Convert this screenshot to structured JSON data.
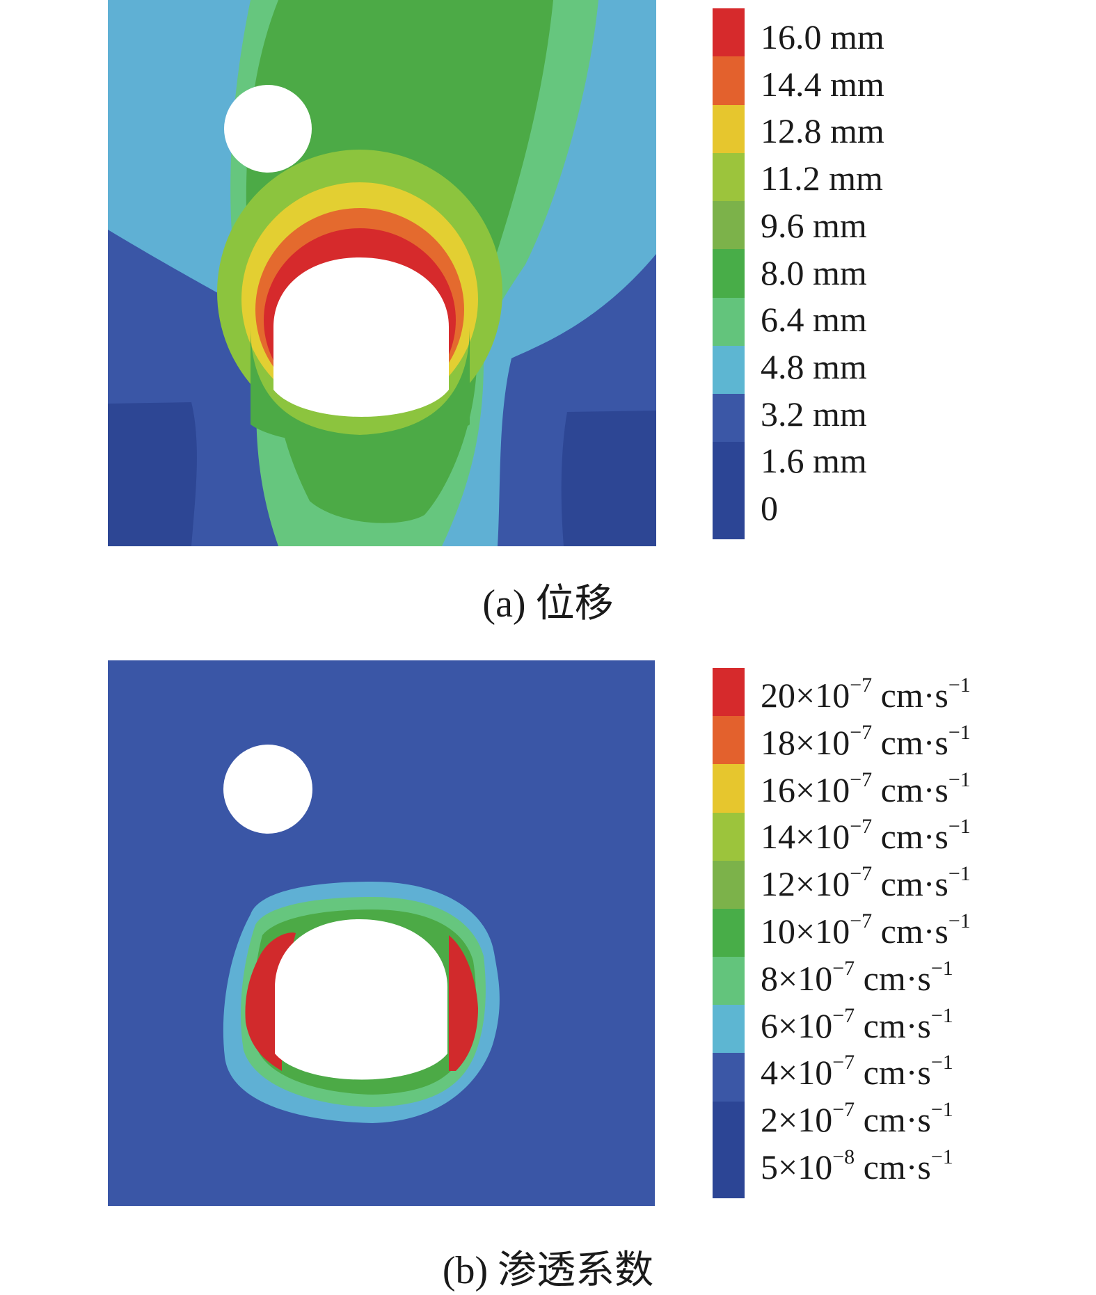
{
  "panel_a": {
    "caption": "(a) 位移",
    "colors": {
      "background_outer": "#3a56a6",
      "background_deep": "#2d4694",
      "cyan": "#5fb0d4",
      "light_green": "#66c67e",
      "green": "#4caa46",
      "yellow_green": "#8cc43e",
      "yellow": "#e3cf32",
      "orange": "#e46a2e",
      "red": "#d62a2c"
    },
    "legend": [
      {
        "label": "16.0 mm",
        "color": "#d62a2c"
      },
      {
        "label": "14.4 mm",
        "color": "#e3612d"
      },
      {
        "label": "12.8 mm",
        "color": "#e6c62e"
      },
      {
        "label": "11.2 mm",
        "color": "#9cc43c"
      },
      {
        "label": "9.6 mm",
        "color": "#7cb24a"
      },
      {
        "label": "8.0 mm",
        "color": "#48ad48"
      },
      {
        "label": "6.4 mm",
        "color": "#63c47c"
      },
      {
        "label": "4.8 mm",
        "color": "#5db6d2"
      },
      {
        "label": "3.2 mm",
        "color": "#3b57a6"
      },
      {
        "label": "1.6 mm",
        "color": "#2c4595"
      },
      {
        "label": "0",
        "color": "#2c4595"
      }
    ]
  },
  "panel_b": {
    "caption": "(b) 渗透系数",
    "colors": {
      "background": "#3a56a6",
      "cyan": "#5fb0d4",
      "light_green": "#66c67e",
      "green": "#4caa46",
      "red": "#d12a2c"
    },
    "legend": [
      {
        "mantissa": "20×10",
        "exp": "−7",
        "unit": " cm·s",
        "unit_exp": "−1",
        "color": "#d62a2c"
      },
      {
        "mantissa": "18×10",
        "exp": "−7",
        "unit": " cm·s",
        "unit_exp": "−1",
        "color": "#e3612d"
      },
      {
        "mantissa": "16×10",
        "exp": "−7",
        "unit": " cm·s",
        "unit_exp": "−1",
        "color": "#e6c62e"
      },
      {
        "mantissa": "14×10",
        "exp": "−7",
        "unit": " cm·s",
        "unit_exp": "−1",
        "color": "#9cc43c"
      },
      {
        "mantissa": "12×10",
        "exp": "−7",
        "unit": " cm·s",
        "unit_exp": "−1",
        "color": "#7cb24a"
      },
      {
        "mantissa": "10×10",
        "exp": "−7",
        "unit": " cm·s",
        "unit_exp": "−1",
        "color": "#48ad48"
      },
      {
        "mantissa": "8×10",
        "exp": "−7",
        "unit": " cm·s",
        "unit_exp": "−1",
        "color": "#63c47c"
      },
      {
        "mantissa": "6×10",
        "exp": "−7",
        "unit": " cm·s",
        "unit_exp": "−1",
        "color": "#5db6d2"
      },
      {
        "mantissa": "4×10",
        "exp": "−7",
        "unit": " cm·s",
        "unit_exp": "−1",
        "color": "#3b57a6"
      },
      {
        "mantissa": "2×10",
        "exp": "−7",
        "unit": " cm·s",
        "unit_exp": "−1",
        "color": "#2c4595"
      },
      {
        "mantissa": "5×10",
        "exp": "−8",
        "unit": " cm·s",
        "unit_exp": "−1",
        "color": "#2c4595"
      }
    ]
  }
}
